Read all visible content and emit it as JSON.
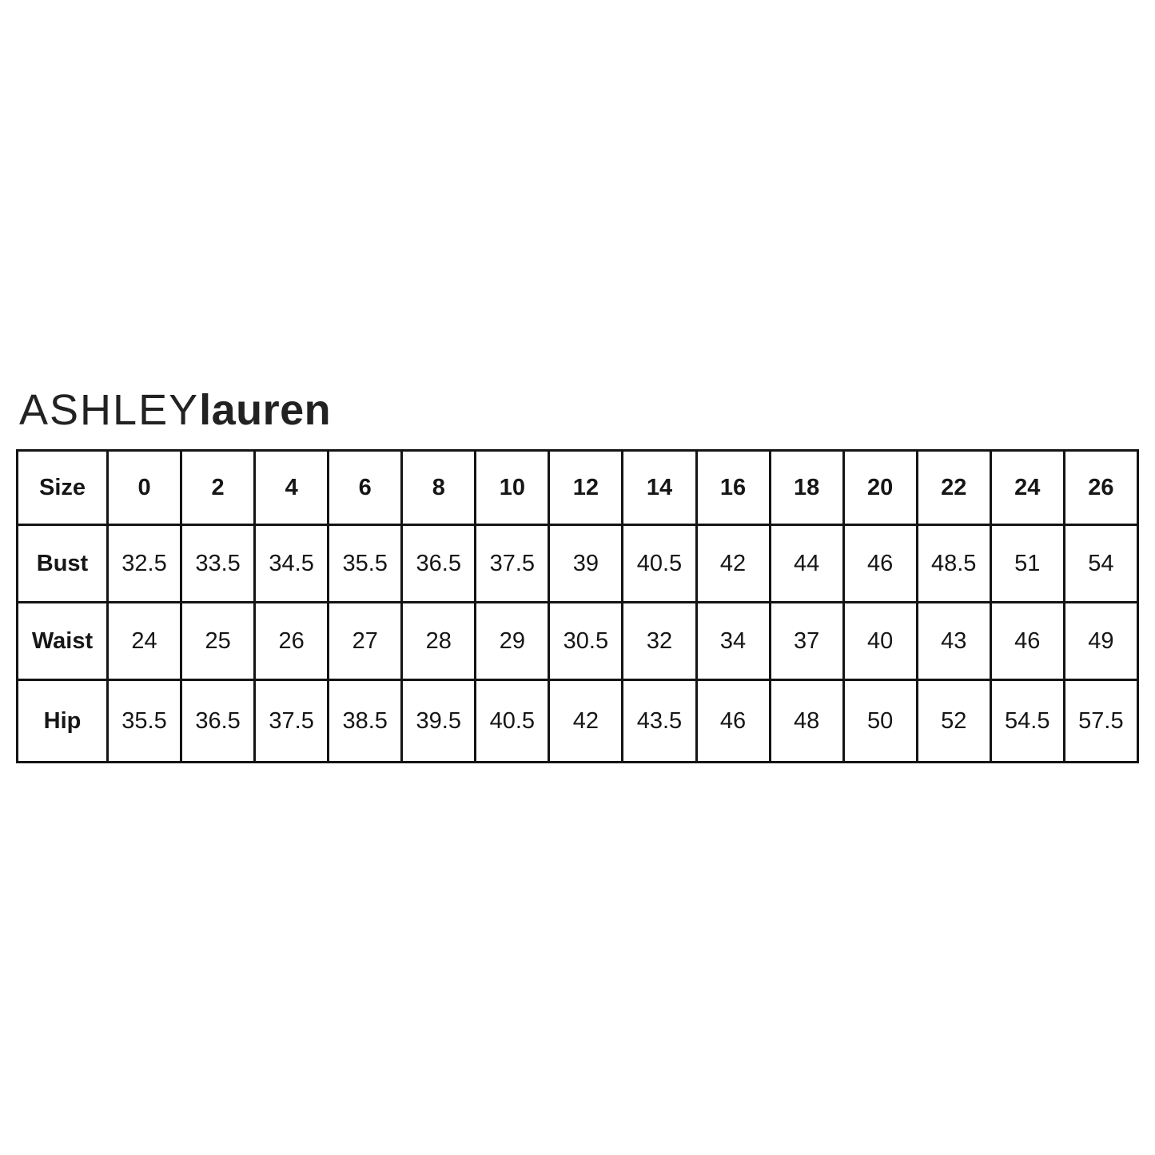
{
  "logo": {
    "brand_first": "ASHLEY",
    "brand_second": "lauren"
  },
  "colors": {
    "background": "#ffffff",
    "border": "#141414",
    "text": "#161616"
  },
  "chart_data": {
    "type": "table",
    "title": "ASHLEYlauren",
    "corner_label": "Size",
    "columns": [
      "0",
      "2",
      "4",
      "6",
      "8",
      "10",
      "12",
      "14",
      "16",
      "18",
      "20",
      "22",
      "24",
      "26"
    ],
    "rows": [
      {
        "label": "Bust",
        "values": [
          "32.5",
          "33.5",
          "34.5",
          "35.5",
          "36.5",
          "37.5",
          "39",
          "40.5",
          "42",
          "44",
          "46",
          "48.5",
          "51",
          "54"
        ]
      },
      {
        "label": "Waist",
        "values": [
          "24",
          "25",
          "26",
          "27",
          "28",
          "29",
          "30.5",
          "32",
          "34",
          "37",
          "40",
          "43",
          "46",
          "49"
        ]
      },
      {
        "label": "Hip",
        "values": [
          "35.5",
          "36.5",
          "37.5",
          "38.5",
          "39.5",
          "40.5",
          "42",
          "43.5",
          "46",
          "48",
          "50",
          "52",
          "54.5",
          "57.5"
        ]
      }
    ]
  }
}
